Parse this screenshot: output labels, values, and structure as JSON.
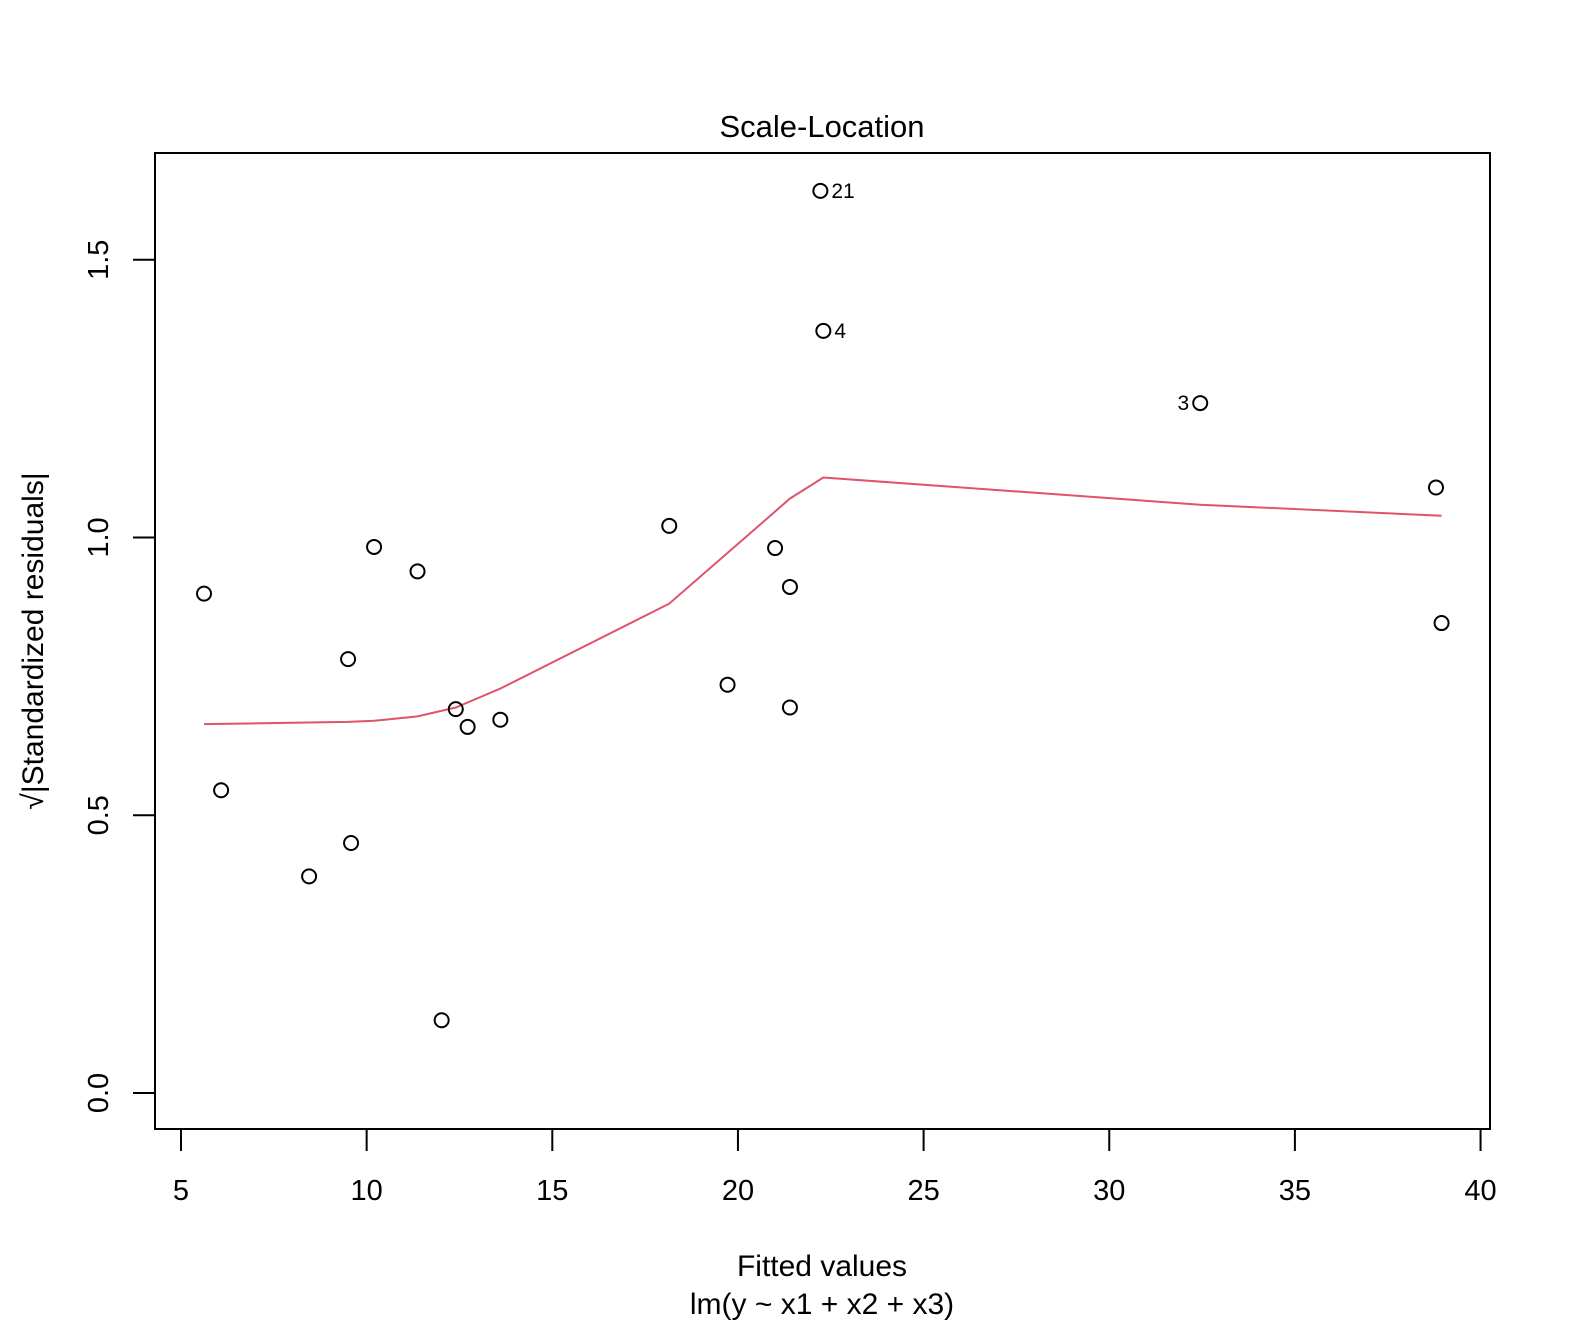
{
  "chart_data": {
    "type": "scatter",
    "title": "Scale-Location",
    "xlabel": "Fitted values",
    "subtitle": "lm(y ~ x1 + x2 + x3)",
    "ylabel": "√|Standardized residuals|",
    "xlim": [
      5,
      40
    ],
    "ylim": [
      0,
      1.6
    ],
    "xticks": [
      5,
      10,
      15,
      20,
      25,
      30,
      35,
      40
    ],
    "xtick_labels": [
      "5",
      "10",
      "15",
      "20",
      "25",
      "30",
      "35",
      "40"
    ],
    "yticks": [
      0,
      0.5,
      1.0,
      1.5
    ],
    "ytick_labels": [
      "0.0",
      "0.5",
      "1.0",
      "1.5"
    ],
    "grid": false,
    "points": [
      {
        "x": 22.22,
        "y": 1.624,
        "label": "21"
      },
      {
        "x": 22.3,
        "y": 1.372,
        "label": "4"
      },
      {
        "x": 32.45,
        "y": 1.242,
        "label": "3"
      },
      {
        "x": 38.8,
        "y": 1.09
      },
      {
        "x": 18.15,
        "y": 1.021
      },
      {
        "x": 10.2,
        "y": 0.983
      },
      {
        "x": 21.0,
        "y": 0.981
      },
      {
        "x": 11.37,
        "y": 0.939
      },
      {
        "x": 21.4,
        "y": 0.911
      },
      {
        "x": 5.62,
        "y": 0.899
      },
      {
        "x": 38.95,
        "y": 0.846
      },
      {
        "x": 9.5,
        "y": 0.781
      },
      {
        "x": 19.72,
        "y": 0.735
      },
      {
        "x": 21.4,
        "y": 0.694
      },
      {
        "x": 12.4,
        "y": 0.691
      },
      {
        "x": 13.6,
        "y": 0.672
      },
      {
        "x": 12.72,
        "y": 0.659
      },
      {
        "x": 6.08,
        "y": 0.545
      },
      {
        "x": 9.58,
        "y": 0.45
      },
      {
        "x": 8.45,
        "y": 0.39
      },
      {
        "x": 12.02,
        "y": 0.131
      }
    ],
    "series": [
      {
        "type": "line",
        "color": "#DF536B",
        "x": [
          5.62,
          9.5,
          10.2,
          11.37,
          12.4,
          12.72,
          13.6,
          18.15,
          21.4,
          22.3,
          32.45,
          38.95
        ],
        "y": [
          0.664,
          0.668,
          0.67,
          0.678,
          0.694,
          0.703,
          0.728,
          0.881,
          1.07,
          1.108,
          1.059,
          1.039
        ]
      }
    ],
    "point_color": "#000000",
    "axis_color": "#000000"
  }
}
